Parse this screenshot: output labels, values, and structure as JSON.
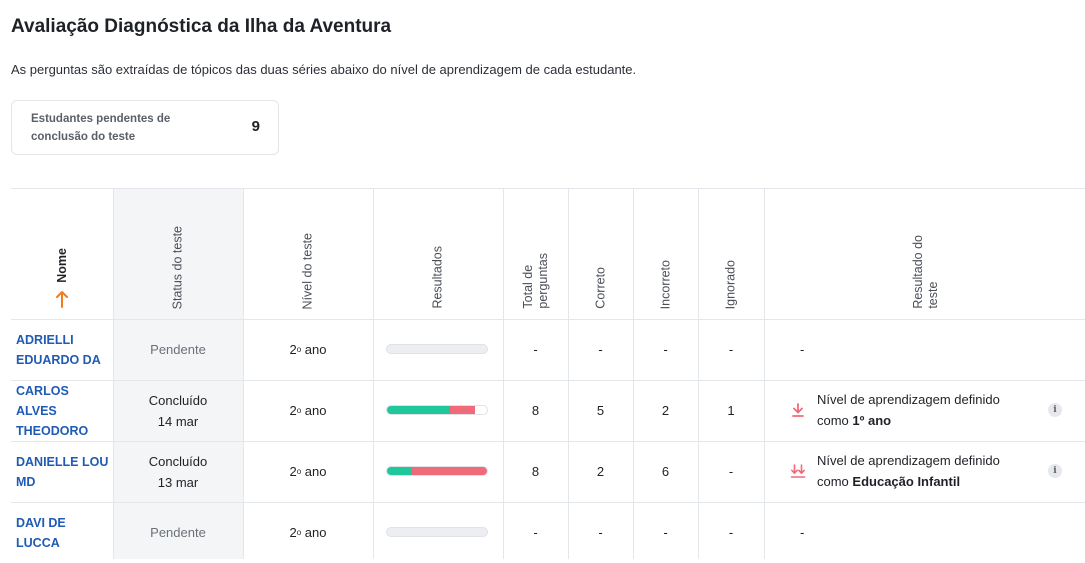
{
  "header": {
    "title": "Avaliação Diagnóstica da Ilha da Aventura",
    "subtitle": "As perguntas são extraídas de tópicos das duas séries abaixo do nível de aprendizagem de cada estudante."
  },
  "pending_card": {
    "label": "Estudantes pendentes de conclusão do teste",
    "count": "9"
  },
  "table": {
    "columns": {
      "name": "Nome",
      "status": "Status do teste",
      "level": "Nível do teste",
      "results": "Resultados",
      "total_line1": "Total de",
      "total_line2": "perguntas",
      "correct": "Correto",
      "incorrect": "Incorreto",
      "ignored": "Ignorado",
      "outcome_line1": "Resultado do",
      "outcome_line2": "teste"
    },
    "colors": {
      "correct": "#1fc79a",
      "incorrect": "#f06b7a",
      "track": "#eceef1",
      "link": "#1f5bb5",
      "sort_arrow": "#f07c1e"
    },
    "rows": [
      {
        "name": "ADRIELLI EDUARDO DA",
        "status": "Pendente",
        "status_date": "",
        "level_num": "2",
        "level_sup": "o",
        "level_word": "ano",
        "results": {
          "correct_pct": 0,
          "incorrect_pct": 0
        },
        "total": "-",
        "correct": "-",
        "incorrect": "-",
        "ignored": "-",
        "outcome": {
          "text": "-",
          "prefix": "",
          "value": "",
          "icon": ""
        }
      },
      {
        "name": "CARLOS ALVES THEODORO",
        "status": "Concluído",
        "status_date": "14 mar",
        "level_num": "2",
        "level_sup": "o",
        "level_word": "ano",
        "results": {
          "correct_pct": 62.5,
          "incorrect_pct": 25
        },
        "total": "8",
        "correct": "5",
        "incorrect": "2",
        "ignored": "1",
        "outcome": {
          "text": "Nível de aprendizagem definido",
          "prefix": "como",
          "value": "1º ano",
          "icon": "arrow-down-icon"
        }
      },
      {
        "name": "DANIELLE LOU MD",
        "status": "Concluído",
        "status_date": "13 mar",
        "level_num": "2",
        "level_sup": "o",
        "level_word": "ano",
        "results": {
          "correct_pct": 25,
          "incorrect_pct": 75
        },
        "total": "8",
        "correct": "2",
        "incorrect": "6",
        "ignored": "-",
        "outcome": {
          "text": "Nível de aprendizagem definido",
          "prefix": "como",
          "value": "Educação Infantil",
          "icon": "double-arrow-down-icon"
        }
      },
      {
        "name": "DAVI DE LUCCA",
        "status": "Pendente",
        "status_date": "",
        "level_num": "2",
        "level_sup": "o",
        "level_word": "ano",
        "results": {
          "correct_pct": 0,
          "incorrect_pct": 0
        },
        "total": "-",
        "correct": "-",
        "incorrect": "-",
        "ignored": "-",
        "outcome": {
          "text": "-",
          "prefix": "",
          "value": "",
          "icon": ""
        }
      }
    ]
  }
}
